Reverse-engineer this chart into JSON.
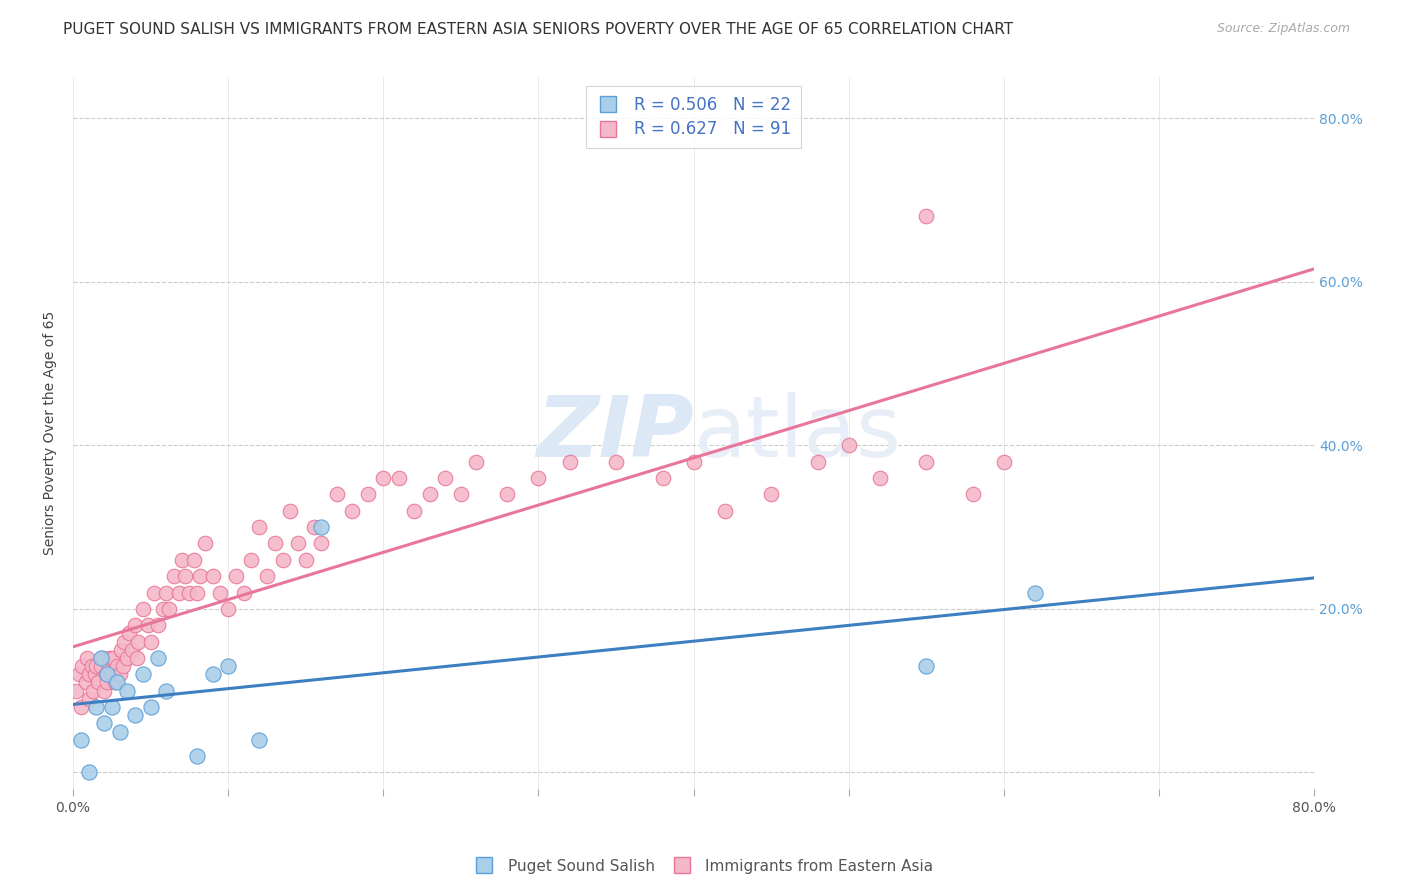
{
  "title": "PUGET SOUND SALISH VS IMMIGRANTS FROM EASTERN ASIA SENIORS POVERTY OVER THE AGE OF 65 CORRELATION CHART",
  "source": "Source: ZipAtlas.com",
  "ylabel": "Seniors Poverty Over the Age of 65",
  "xlim": [
    0,
    0.8
  ],
  "ylim": [
    -0.02,
    0.85
  ],
  "series1_label": "Puget Sound Salish",
  "series2_label": "Immigrants from Eastern Asia",
  "series1_R": "0.506",
  "series1_N": "22",
  "series2_R": "0.627",
  "series2_N": "91",
  "series1_color": "#aacfe8",
  "series2_color": "#f5b8c8",
  "series1_edge_color": "#5b9fd6",
  "series2_edge_color": "#e8759a",
  "trendline1_color": "#3d7fc1",
  "trendline2_color": "#e8759a",
  "background_color": "#ffffff",
  "grid_color": "#cccccc",
  "title_fontsize": 11,
  "axis_label_fontsize": 10,
  "tick_fontsize": 10,
  "watermark_color": "#dce8f5",
  "series1_x": [
    0.005,
    0.01,
    0.015,
    0.018,
    0.02,
    0.022,
    0.025,
    0.028,
    0.03,
    0.035,
    0.04,
    0.045,
    0.05,
    0.055,
    0.06,
    0.08,
    0.09,
    0.1,
    0.12,
    0.16,
    0.55,
    0.62
  ],
  "series1_y": [
    0.04,
    0.0,
    0.08,
    0.14,
    0.06,
    0.12,
    0.08,
    0.11,
    0.05,
    0.1,
    0.07,
    0.12,
    0.08,
    0.14,
    0.1,
    0.02,
    0.12,
    0.13,
    0.04,
    0.3,
    0.13,
    0.22
  ],
  "series2_x": [
    0.002,
    0.004,
    0.005,
    0.006,
    0.008,
    0.009,
    0.01,
    0.01,
    0.012,
    0.013,
    0.014,
    0.015,
    0.016,
    0.018,
    0.019,
    0.02,
    0.021,
    0.022,
    0.023,
    0.024,
    0.025,
    0.026,
    0.027,
    0.028,
    0.03,
    0.031,
    0.032,
    0.033,
    0.035,
    0.036,
    0.038,
    0.04,
    0.041,
    0.042,
    0.045,
    0.048,
    0.05,
    0.052,
    0.055,
    0.058,
    0.06,
    0.062,
    0.065,
    0.068,
    0.07,
    0.072,
    0.075,
    0.078,
    0.08,
    0.082,
    0.085,
    0.09,
    0.095,
    0.1,
    0.105,
    0.11,
    0.115,
    0.12,
    0.125,
    0.13,
    0.135,
    0.14,
    0.145,
    0.15,
    0.155,
    0.16,
    0.17,
    0.18,
    0.19,
    0.2,
    0.21,
    0.22,
    0.23,
    0.24,
    0.25,
    0.26,
    0.28,
    0.3,
    0.32,
    0.35,
    0.38,
    0.4,
    0.42,
    0.45,
    0.48,
    0.5,
    0.52,
    0.55,
    0.58,
    0.6,
    0.55
  ],
  "series2_y": [
    0.1,
    0.12,
    0.08,
    0.13,
    0.11,
    0.14,
    0.09,
    0.12,
    0.13,
    0.1,
    0.12,
    0.13,
    0.11,
    0.13,
    0.14,
    0.1,
    0.12,
    0.11,
    0.13,
    0.14,
    0.12,
    0.14,
    0.11,
    0.13,
    0.12,
    0.15,
    0.13,
    0.16,
    0.14,
    0.17,
    0.15,
    0.18,
    0.14,
    0.16,
    0.2,
    0.18,
    0.16,
    0.22,
    0.18,
    0.2,
    0.22,
    0.2,
    0.24,
    0.22,
    0.26,
    0.24,
    0.22,
    0.26,
    0.22,
    0.24,
    0.28,
    0.24,
    0.22,
    0.2,
    0.24,
    0.22,
    0.26,
    0.3,
    0.24,
    0.28,
    0.26,
    0.32,
    0.28,
    0.26,
    0.3,
    0.28,
    0.34,
    0.32,
    0.34,
    0.36,
    0.36,
    0.32,
    0.34,
    0.36,
    0.34,
    0.38,
    0.34,
    0.36,
    0.38,
    0.38,
    0.36,
    0.38,
    0.32,
    0.34,
    0.38,
    0.4,
    0.36,
    0.38,
    0.34,
    0.38,
    0.68
  ]
}
